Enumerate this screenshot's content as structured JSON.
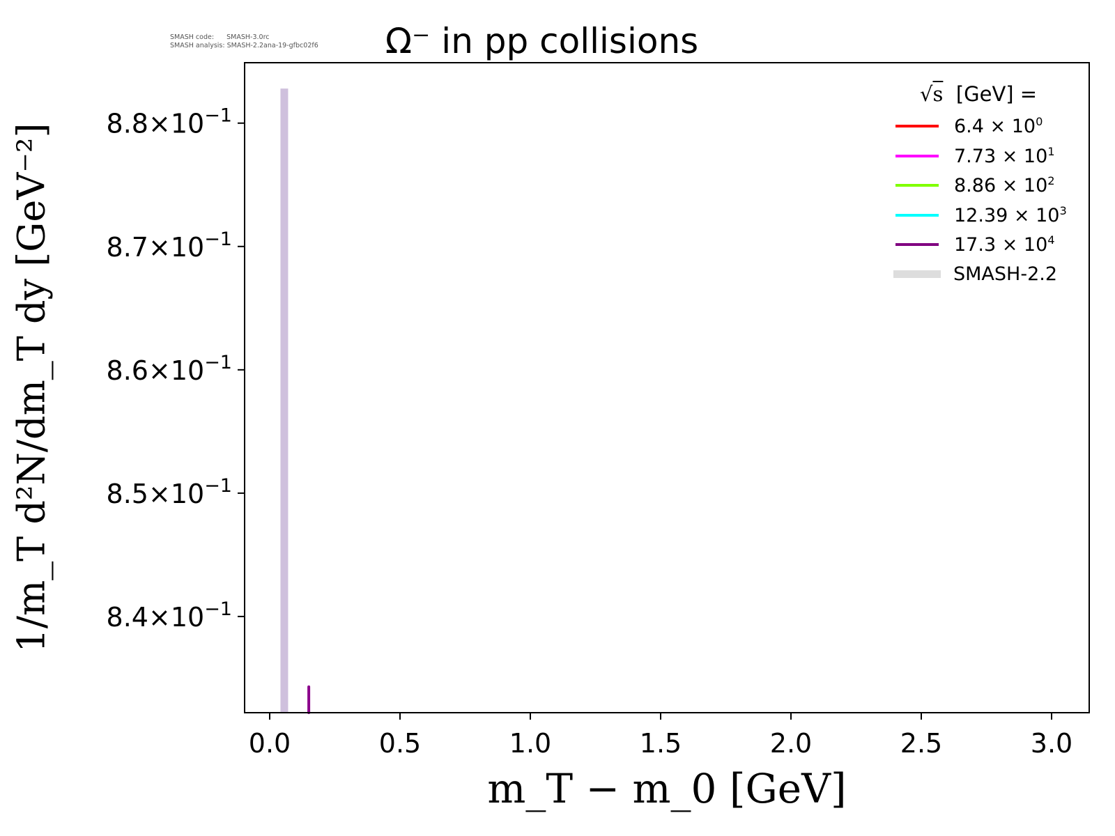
{
  "meta": {
    "code_line": "SMASH code:      SMASH-3.0rc",
    "analysis_line": "SMASH analysis: SMASH-2.2ana-19-gfbc02f6"
  },
  "chart_data": {
    "type": "line",
    "title": "Ω⁻ in pp collisions",
    "xlabel": "m_T − m_0 [GeV]",
    "ylabel": "1/m_T d²N/dm_T dy [GeV⁻²]",
    "xlim": [
      -0.1,
      3.15
    ],
    "ylim": [
      0.8322,
      0.8849
    ],
    "xticks": [
      0.0,
      0.5,
      1.0,
      1.5,
      2.0,
      2.5,
      3.0
    ],
    "xtick_labels": [
      "0.0",
      "0.5",
      "1.0",
      "1.5",
      "2.0",
      "2.5",
      "3.0"
    ],
    "yticks": [
      0.84,
      0.85,
      0.86,
      0.87,
      0.88
    ],
    "ytick_labels": [
      {
        "mant": "8.4",
        "exp": "−1"
      },
      {
        "mant": "8.5",
        "exp": "−1"
      },
      {
        "mant": "8.6",
        "exp": "−1"
      },
      {
        "mant": "8.7",
        "exp": "−1"
      },
      {
        "mant": "8.8",
        "exp": "−1"
      }
    ],
    "grid": false,
    "legend": {
      "placement": "top-right",
      "title": "[GeV] =",
      "entries": [
        {
          "mant": "6.4",
          "exp": "0",
          "color": "#ff0000"
        },
        {
          "mant": "7.73",
          "exp": "1",
          "color": "#ff00ff"
        },
        {
          "mant": "8.86",
          "exp": "2",
          "color": "#80ff00"
        },
        {
          "mant": "12.39",
          "exp": "3",
          "color": "#00ffff"
        },
        {
          "mant": "17.3",
          "exp": "4",
          "color": "#800080"
        },
        {
          "label": "SMASH-2.2",
          "color": "#dddddd"
        }
      ]
    },
    "series": [
      {
        "name": "SMASH-2.2",
        "color": "#cfc0dd",
        "points": [
          [
            0.056,
            0.8322
          ],
          [
            0.056,
            0.8828
          ]
        ]
      },
      {
        "name": "17.3 × 10^4",
        "color": "#8b008b",
        "points": [
          [
            0.15,
            0.8322
          ],
          [
            0.15,
            0.8343
          ]
        ]
      }
    ]
  }
}
